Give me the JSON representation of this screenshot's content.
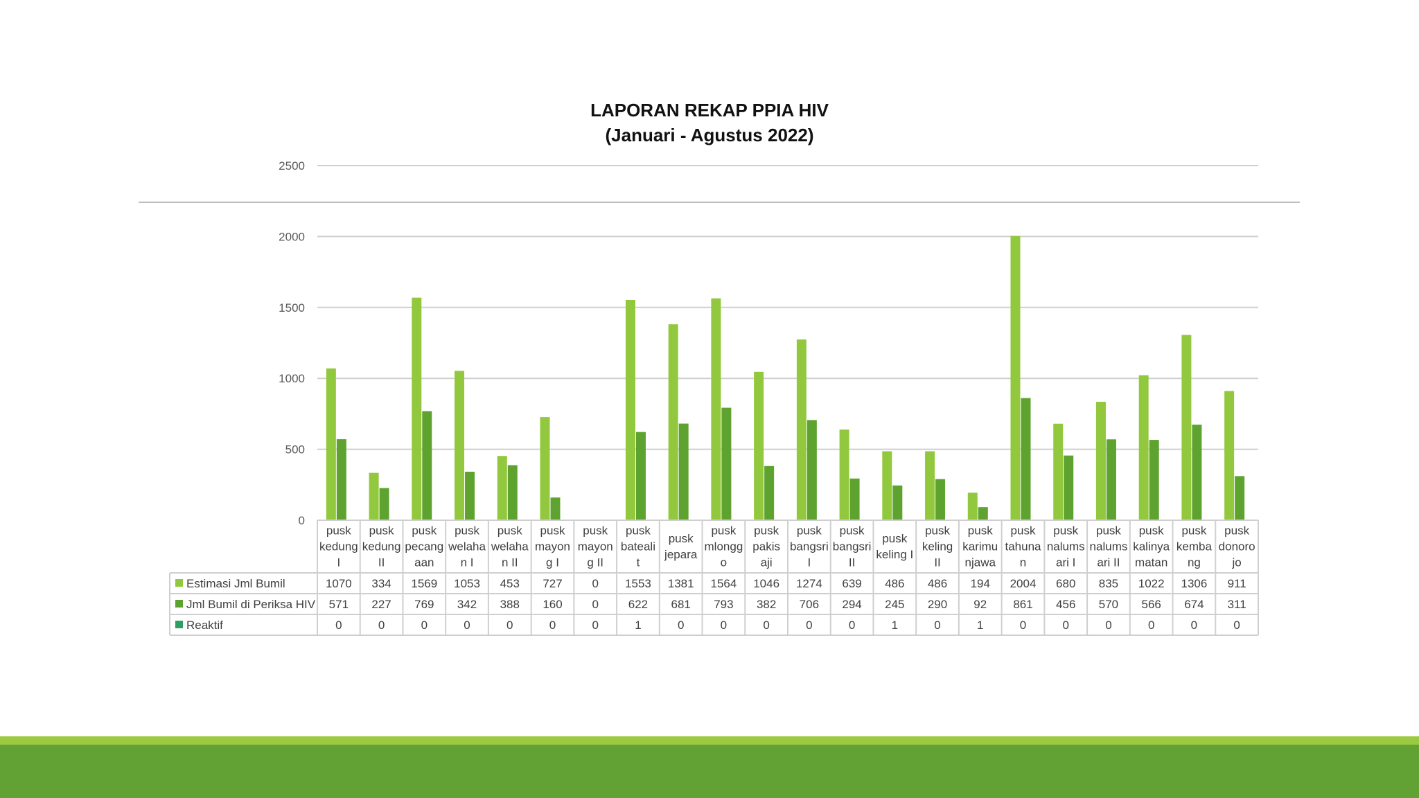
{
  "chart_data": {
    "type": "bar",
    "title": "LAPORAN REKAP PPIA HIV",
    "subtitle": "(Januari - Agustus 2022)",
    "ylim": [
      0,
      2500
    ],
    "yticks": [
      "0",
      "500",
      "1000",
      "1500",
      "2000",
      "2500"
    ],
    "grid": true,
    "legend": "data-table-left",
    "categories": [
      [
        "pusk",
        "kedung",
        "I"
      ],
      [
        "pusk",
        "kedung",
        "II"
      ],
      [
        "pusk",
        "pecang",
        "aan"
      ],
      [
        "pusk",
        "welaha",
        "n I"
      ],
      [
        "pusk",
        "welaha",
        "n II"
      ],
      [
        "pusk",
        "mayon",
        "g I"
      ],
      [
        "pusk",
        "mayon",
        "g II"
      ],
      [
        "pusk",
        "bateali",
        "t"
      ],
      [
        "pusk",
        "jepara"
      ],
      [
        "pusk",
        "mlongg",
        "o"
      ],
      [
        "pusk",
        "pakis",
        "aji"
      ],
      [
        "pusk",
        "bangsri",
        "I"
      ],
      [
        "pusk",
        "bangsri",
        "II"
      ],
      [
        "pusk",
        "keling I"
      ],
      [
        "pusk",
        "keling",
        "II"
      ],
      [
        "pusk",
        "karimu",
        "njawa"
      ],
      [
        "pusk",
        "tahuna",
        "n"
      ],
      [
        "pusk",
        "nalums",
        "ari I"
      ],
      [
        "pusk",
        "nalums",
        "ari II"
      ],
      [
        "pusk",
        "kalinya",
        "matan"
      ],
      [
        "pusk",
        "kemba",
        "ng"
      ],
      [
        "pusk",
        "donoro",
        "jo"
      ]
    ],
    "series": [
      {
        "name": "Estimasi Jml Bumil",
        "color": "#92c83e",
        "values": [
          1070,
          334,
          1569,
          1053,
          453,
          727,
          0,
          1553,
          1381,
          1564,
          1046,
          1274,
          639,
          486,
          486,
          194,
          2004,
          680,
          835,
          1022,
          1306,
          911
        ]
      },
      {
        "name": "Jml Bumil di Periksa HIV",
        "color": "#5ea32f",
        "values": [
          571,
          227,
          769,
          342,
          388,
          160,
          0,
          622,
          681,
          793,
          382,
          706,
          294,
          245,
          290,
          92,
          861,
          456,
          570,
          566,
          674,
          311
        ]
      },
      {
        "name": "Reaktif",
        "color": "#2f9e63",
        "values": [
          0,
          0,
          0,
          0,
          0,
          0,
          0,
          1,
          0,
          0,
          0,
          0,
          0,
          1,
          0,
          1,
          0,
          0,
          0,
          0,
          0,
          0
        ]
      }
    ]
  },
  "colors": {
    "gridline": "#cfcfcf",
    "table_border": "#cfcfcf",
    "footer_light": "#9bc93f",
    "footer_dark": "#62a234"
  }
}
